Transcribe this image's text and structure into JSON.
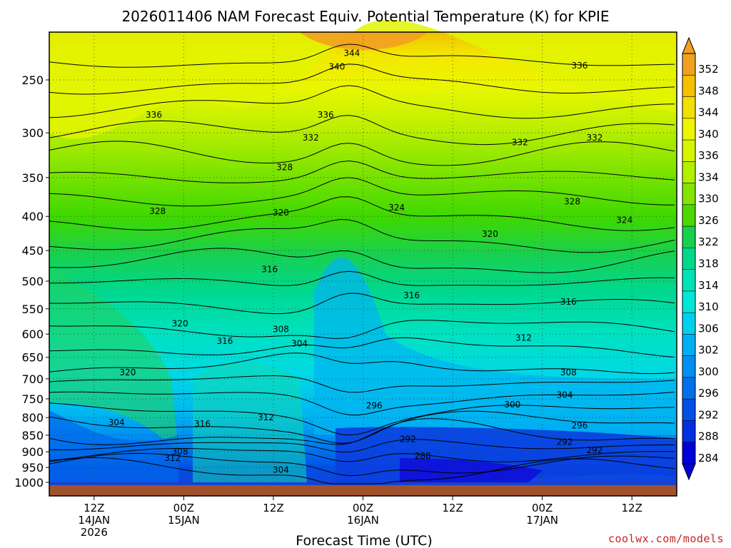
{
  "chart_data": {
    "type": "heatmap",
    "title": "2026011406 NAM Forecast Equiv. Potential Temperature (K) for KPIE",
    "xlabel": "Forecast Time (UTC)",
    "ylabel": "",
    "credit": "coolwx.com/models",
    "y_ticks": [
      250,
      300,
      350,
      400,
      450,
      500,
      550,
      600,
      650,
      700,
      750,
      800,
      850,
      900,
      950,
      1000
    ],
    "y_tick_labels": [
      "250",
      "300",
      "350",
      "400",
      "450",
      "500",
      "550",
      "600",
      "650",
      "700",
      "750",
      "800",
      "850",
      "900",
      "950",
      "1000"
    ],
    "x_ticks": [
      {
        "hour": 6,
        "lines": [
          "12Z",
          "14JAN",
          "2026"
        ]
      },
      {
        "hour": 18,
        "lines": [
          "00Z",
          "15JAN"
        ]
      },
      {
        "hour": 30,
        "lines": [
          "12Z"
        ]
      },
      {
        "hour": 42,
        "lines": [
          "00Z",
          "16JAN"
        ]
      },
      {
        "hour": 54,
        "lines": [
          "12Z"
        ]
      },
      {
        "hour": 66,
        "lines": [
          "00Z",
          "17JAN"
        ]
      },
      {
        "hour": 78,
        "lines": [
          "12Z"
        ]
      }
    ],
    "xlim_hours": [
      0,
      84
    ],
    "ylim_hpa": [
      1000,
      200
    ],
    "grid": true,
    "colorbar": {
      "labels": [
        "352",
        "348",
        "344",
        "340",
        "336",
        "334",
        "330",
        "326",
        "322",
        "318",
        "314",
        "310",
        "306",
        "302",
        "300",
        "296",
        "292",
        "288",
        "284"
      ],
      "colors": [
        "#f0a020",
        "#f5c000",
        "#f3e000",
        "#eef400",
        "#d6f400",
        "#b2ef00",
        "#82e400",
        "#4cd800",
        "#18d04c",
        "#00d88a",
        "#00e2b8",
        "#00e6d8",
        "#00d0ee",
        "#00aef4",
        "#0090f4",
        "#0070ec",
        "#0050e6",
        "#0030e0",
        "#0000d8"
      ],
      "position": "right"
    },
    "contour_labels": [
      {
        "text": "344",
        "hour": 40.5,
        "p": 228
      },
      {
        "text": "340",
        "hour": 38.5,
        "p": 239
      },
      {
        "text": "336",
        "hour": 71,
        "p": 238
      },
      {
        "text": "336",
        "hour": 14,
        "p": 282
      },
      {
        "text": "336",
        "hour": 37,
        "p": 282
      },
      {
        "text": "332",
        "hour": 35,
        "p": 305
      },
      {
        "text": "332",
        "hour": 63,
        "p": 310
      },
      {
        "text": "332",
        "hour": 73,
        "p": 305
      },
      {
        "text": "328",
        "hour": 31.5,
        "p": 338
      },
      {
        "text": "328",
        "hour": 70,
        "p": 380
      },
      {
        "text": "328",
        "hour": 14.5,
        "p": 393
      },
      {
        "text": "324",
        "hour": 46.5,
        "p": 388
      },
      {
        "text": "324",
        "hour": 77,
        "p": 405
      },
      {
        "text": "320",
        "hour": 31,
        "p": 395
      },
      {
        "text": "320",
        "hour": 59,
        "p": 425
      },
      {
        "text": "316",
        "hour": 29.5,
        "p": 480
      },
      {
        "text": "316",
        "hour": 48.5,
        "p": 525
      },
      {
        "text": "316",
        "hour": 69.5,
        "p": 537
      },
      {
        "text": "320",
        "hour": 17.5,
        "p": 579
      },
      {
        "text": "308",
        "hour": 31,
        "p": 590
      },
      {
        "text": "316",
        "hour": 23.5,
        "p": 615
      },
      {
        "text": "312",
        "hour": 63.5,
        "p": 608
      },
      {
        "text": "304",
        "hour": 33.5,
        "p": 620
      },
      {
        "text": "320",
        "hour": 10.5,
        "p": 685
      },
      {
        "text": "308",
        "hour": 69.5,
        "p": 685
      },
      {
        "text": "296",
        "hour": 43.5,
        "p": 768
      },
      {
        "text": "300",
        "hour": 62,
        "p": 765
      },
      {
        "text": "304",
        "hour": 69,
        "p": 740
      },
      {
        "text": "312",
        "hour": 29,
        "p": 800
      },
      {
        "text": "304",
        "hour": 9,
        "p": 813
      },
      {
        "text": "316",
        "hour": 20.5,
        "p": 817
      },
      {
        "text": "296",
        "hour": 71,
        "p": 822
      },
      {
        "text": "292",
        "hour": 48,
        "p": 862
      },
      {
        "text": "292",
        "hour": 69,
        "p": 870
      },
      {
        "text": "292",
        "hour": 73,
        "p": 895
      },
      {
        "text": "308",
        "hour": 17.5,
        "p": 900
      },
      {
        "text": "288",
        "hour": 50,
        "p": 913
      },
      {
        "text": "312",
        "hour": 16.5,
        "p": 920
      },
      {
        "text": "304",
        "hour": 31,
        "p": 958
      }
    ]
  }
}
